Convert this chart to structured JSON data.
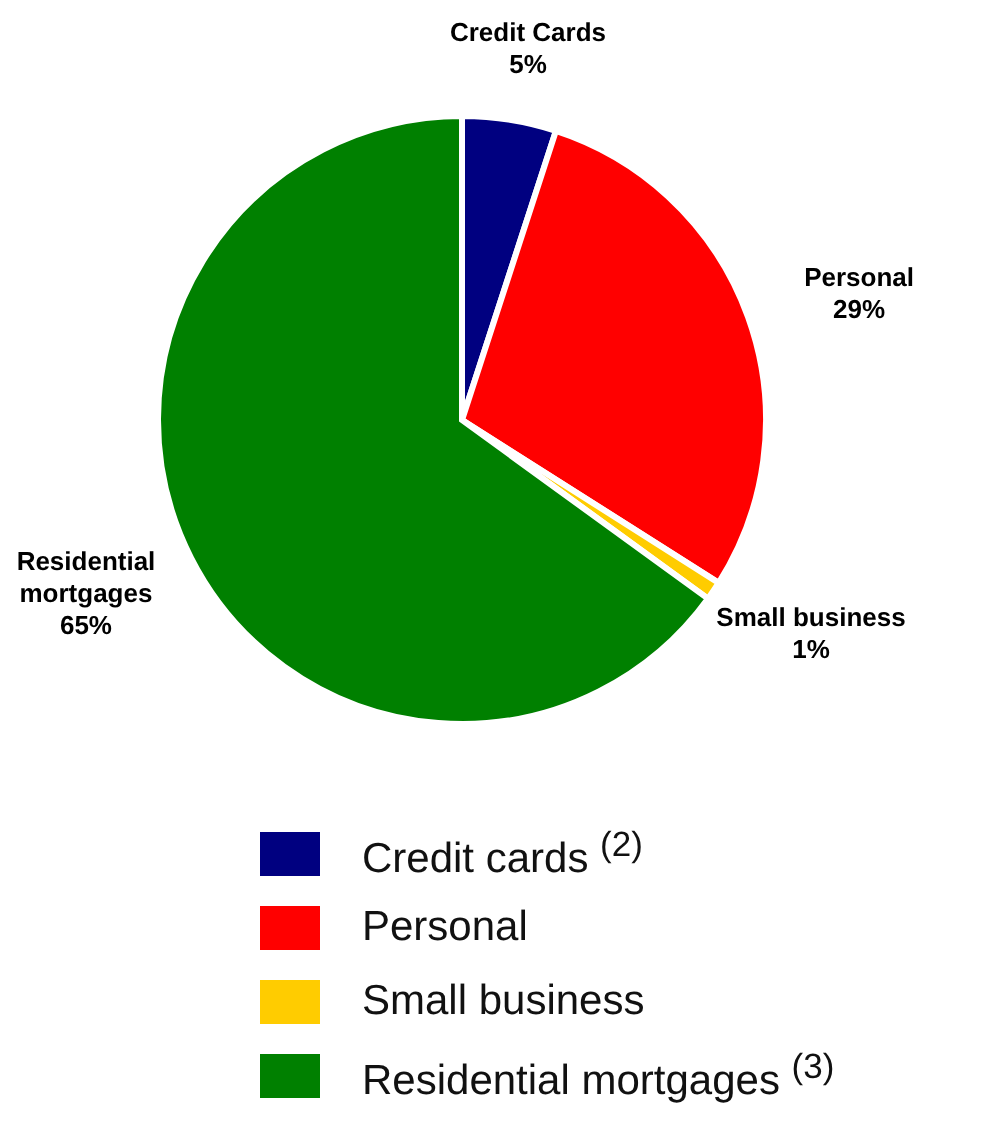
{
  "chart_data": {
    "type": "pie",
    "categories": [
      "Credit cards $^{(2)}$",
      "Personal",
      "Small business",
      "Residential mortgages $^{(3)}$"
    ],
    "values": [
      5,
      29,
      1,
      65
    ],
    "value_labels": [
      "5%",
      "29%",
      "1%",
      "65%"
    ],
    "colors": [
      "#000080",
      "#ff0000",
      "#ffcc00",
      "#008000"
    ],
    "annotations": [
      "Credit Cards",
      "Personal",
      "Small business",
      "Residential\nmortgages"
    ],
    "legend": "bottom"
  }
}
